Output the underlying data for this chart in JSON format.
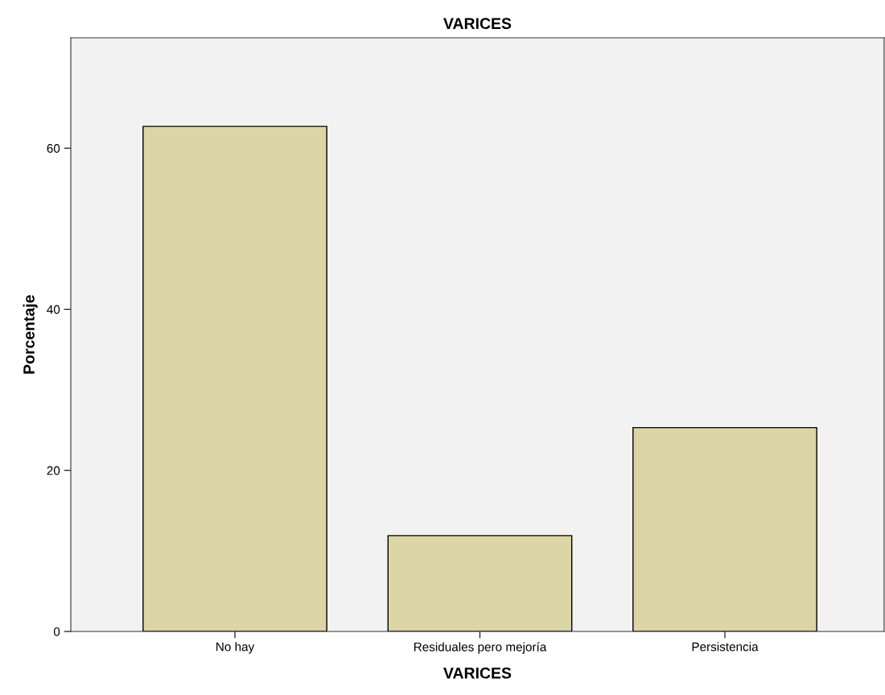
{
  "chart_data": {
    "type": "bar",
    "title": "VARICES",
    "xlabel": "VARICES",
    "ylabel": "Porcentaje",
    "categories": [
      "No hay",
      "Residuales pero mejoría",
      "Persistencia"
    ],
    "values": [
      62.7,
      11.9,
      25.3
    ],
    "color": "#dcd5a5",
    "ylim": [
      0,
      73.7
    ],
    "yticks": [
      0,
      20,
      40,
      60
    ],
    "grid": false
  }
}
